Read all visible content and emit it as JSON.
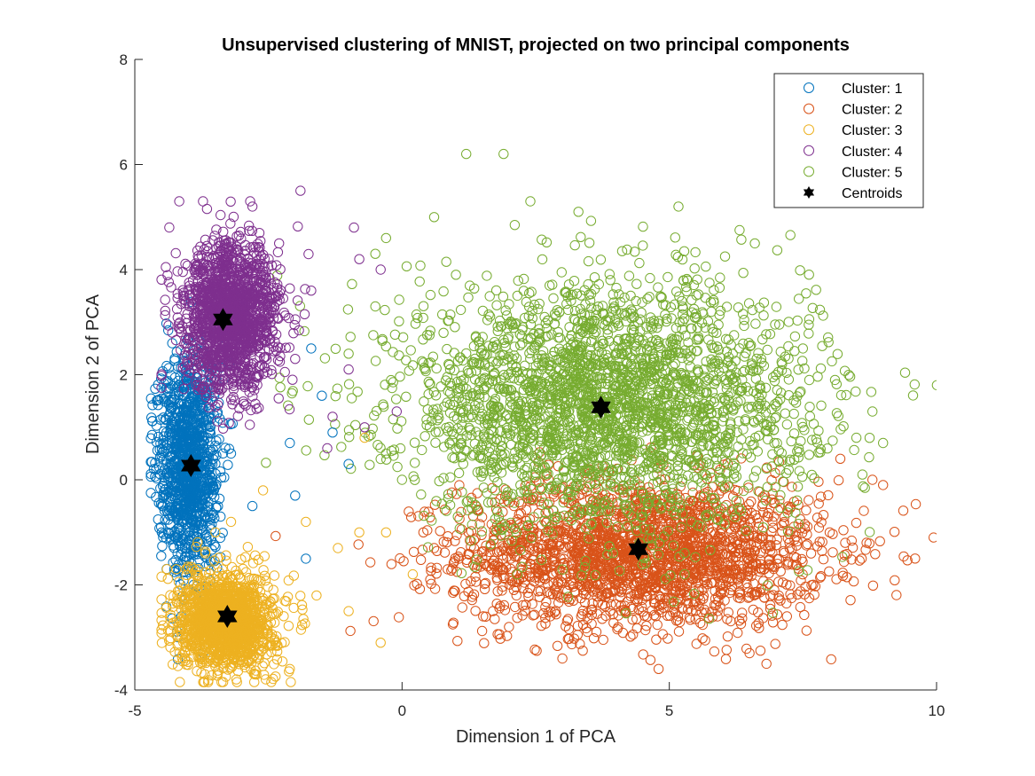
{
  "chart_data": {
    "type": "scatter",
    "title": "Unsupervised clustering of MNIST, projected on two principal components",
    "xlabel": "Dimension 1 of PCA",
    "ylabel": "Dimension 2 of PCA",
    "xlim": [
      -5,
      10
    ],
    "ylim": [
      -4,
      8
    ],
    "xticks": [
      -5,
      0,
      5,
      10
    ],
    "yticks": [
      -4,
      -2,
      0,
      2,
      4,
      6,
      8
    ],
    "grid": false,
    "legend_position": "top-right",
    "series": [
      {
        "name": "Cluster: 1",
        "color": "#0072BD",
        "marker": "circle",
        "center": [
          -4.0,
          0.3
        ],
        "spread": [
          0.28,
          1.05
        ],
        "count": 1100,
        "sample_points": [
          [
            -4.6,
            0.2
          ],
          [
            -4.3,
            2.6
          ],
          [
            -3.9,
            1.6
          ],
          [
            -3.6,
            0.9
          ],
          [
            -3.2,
            0.5
          ],
          [
            -2.8,
            -0.5
          ],
          [
            -2.1,
            0.7
          ],
          [
            -1.7,
            2.5
          ],
          [
            -1.5,
            1.6
          ],
          [
            -1.3,
            0.9
          ],
          [
            -1.0,
            0.3
          ],
          [
            -2.0,
            -0.3
          ],
          [
            -1.8,
            -1.5
          ],
          [
            -4.2,
            -1.4
          ]
        ]
      },
      {
        "name": "Cluster: 2",
        "color": "#D95319",
        "marker": "circle",
        "center": [
          4.5,
          -1.4
        ],
        "spread": [
          1.7,
          0.7
        ],
        "count": 2200,
        "sample_points": [
          [
            0.4,
            -1.0
          ],
          [
            0.6,
            -1.3
          ],
          [
            1.7,
            -2.5
          ],
          [
            2.0,
            -2.8
          ],
          [
            3.0,
            -3.4
          ],
          [
            4.8,
            -3.6
          ],
          [
            6.5,
            -3.3
          ],
          [
            7.2,
            -2.6
          ],
          [
            8.2,
            0.4
          ],
          [
            8.8,
            0.0
          ],
          [
            9.0,
            -0.1
          ],
          [
            8.6,
            -1.5
          ],
          [
            8.0,
            -1.0
          ],
          [
            3.5,
            0.2
          ]
        ]
      },
      {
        "name": "Cluster: 3",
        "color": "#EDB120",
        "marker": "circle",
        "center": [
          -3.3,
          -2.7
        ],
        "spread": [
          0.45,
          0.45
        ],
        "count": 1400,
        "sample_points": [
          [
            -4.4,
            -1.7
          ],
          [
            -3.1,
            -3.8
          ],
          [
            -2.1,
            -3.6
          ],
          [
            -1.6,
            -2.2
          ],
          [
            -1.2,
            -1.3
          ],
          [
            -0.8,
            -1.0
          ],
          [
            -0.3,
            -1.0
          ],
          [
            0.2,
            -1.8
          ],
          [
            -0.4,
            -3.1
          ],
          [
            -1.0,
            -2.5
          ],
          [
            -2.6,
            -0.2
          ],
          [
            -1.8,
            -0.8
          ],
          [
            -0.7,
            0.8
          ],
          [
            -3.2,
            -0.8
          ]
        ]
      },
      {
        "name": "Cluster: 4",
        "color": "#7E2F8E",
        "marker": "circle",
        "center": [
          -3.2,
          3.1
        ],
        "spread": [
          0.45,
          0.7
        ],
        "count": 1500,
        "sample_points": [
          [
            -4.3,
            2.8
          ],
          [
            -2.8,
            5.2
          ],
          [
            -1.9,
            5.5
          ],
          [
            -2.3,
            4.5
          ],
          [
            -1.7,
            3.6
          ],
          [
            -2.0,
            2.3
          ],
          [
            -0.9,
            4.8
          ],
          [
            -0.8,
            4.2
          ],
          [
            -0.4,
            4.0
          ],
          [
            -1.0,
            2.1
          ],
          [
            -1.3,
            1.2
          ],
          [
            -0.7,
            1.0
          ],
          [
            -0.1,
            1.3
          ],
          [
            -1.4,
            0.6
          ]
        ]
      },
      {
        "name": "Cluster: 5",
        "color": "#77AC30",
        "marker": "circle",
        "center": [
          3.8,
          1.4
        ],
        "spread": [
          1.9,
          1.15
        ],
        "count": 2700,
        "sample_points": [
          [
            1.2,
            6.2
          ],
          [
            1.9,
            6.2
          ],
          [
            2.4,
            5.3
          ],
          [
            3.3,
            5.1
          ],
          [
            0.6,
            5.0
          ],
          [
            -0.3,
            4.6
          ],
          [
            -0.5,
            4.3
          ],
          [
            6.6,
            4.5
          ],
          [
            7.5,
            2.5
          ],
          [
            8.1,
            1.9
          ],
          [
            8.8,
            1.3
          ],
          [
            8.5,
            0.8
          ],
          [
            9.0,
            0.7
          ],
          [
            -1.0,
            2.4
          ],
          [
            -0.3,
            0.5
          ],
          [
            0.0,
            0.0
          ],
          [
            -0.5,
            3.3
          ]
        ]
      }
    ],
    "centroids": {
      "name": "Centroids",
      "color": "#000000",
      "marker": "hexagram",
      "points": [
        [
          -3.95,
          0.27
        ],
        [
          4.42,
          -1.32
        ],
        [
          -3.27,
          -2.6
        ],
        [
          -3.35,
          3.05
        ],
        [
          3.72,
          1.38
        ]
      ]
    }
  }
}
